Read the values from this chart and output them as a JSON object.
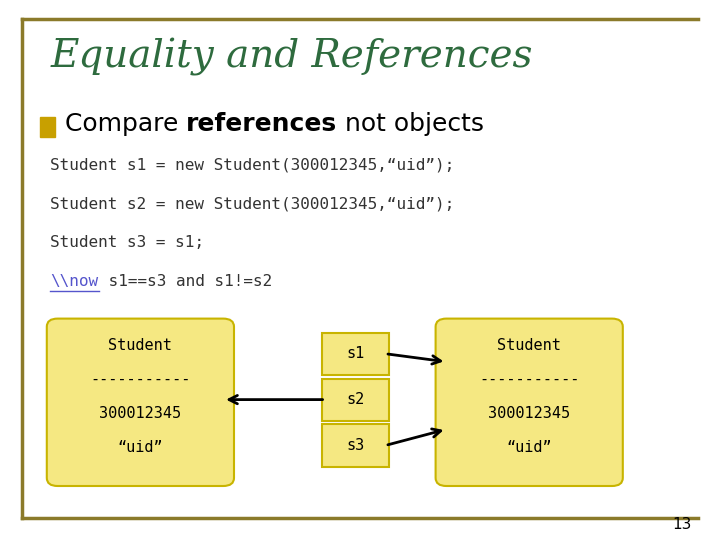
{
  "title": "Equality and References",
  "title_color": "#2E6B3E",
  "border_color": "#8B7A2A",
  "background_color": "#FFFFFF",
  "bullet_color": "#C8A000",
  "code_lines": [
    "Student s1 = new Student(300012345,“uid”);",
    "Student s2 = new Student(300012345,“uid”);",
    "Student s3 = s1;",
    "\\\\now s1==s3 and s1!=s2"
  ],
  "box_fill": "#F5E882",
  "box_edge": "#C8B400",
  "left_box_lines": [
    "Student",
    "-----------",
    "300012345",
    "“uid”"
  ],
  "right_box_lines": [
    "Student",
    "-----------",
    "300012345",
    "“uid”"
  ],
  "ref_labels": [
    "s1",
    "s2",
    "s3"
  ],
  "page_number": "13"
}
